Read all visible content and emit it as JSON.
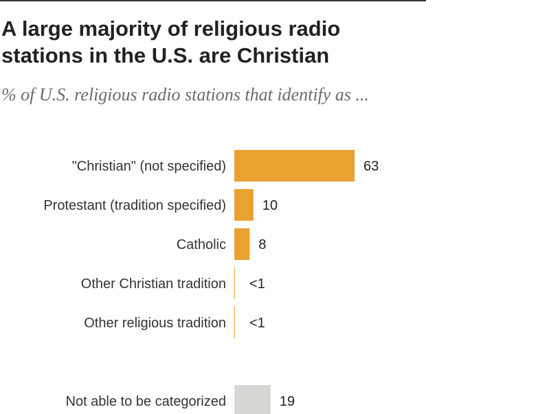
{
  "header": {
    "title": "A large majority of religious radio stations in the U.S. are Christian",
    "subtitle": "% of U.S. religious radio stations that identify as ..."
  },
  "colors": {
    "primary_bar": "#E9A130",
    "uncategorized_bar": "#D6D6D2",
    "rule": "#333333"
  },
  "chart_data": {
    "type": "bar",
    "orientation": "horizontal",
    "title": "A large majority of religious radio stations in the U.S. are Christian",
    "subtitle": "% of U.S. religious radio stations that identify as ...",
    "xlabel": "",
    "ylabel": "",
    "xlim": [
      0,
      100
    ],
    "grid": false,
    "legend": "none",
    "categories": [
      "\"Christian\" (not specified)",
      "Protestant (tradition specified)",
      "Catholic",
      "Other Christian tradition",
      "Other religious tradition",
      "Not able to be categorized"
    ],
    "values": [
      63,
      10,
      8,
      0.3,
      0.3,
      19
    ],
    "value_labels": [
      "63",
      "10",
      "8",
      "<1",
      "<1",
      "19"
    ],
    "bar_colors": [
      "#E9A130",
      "#E9A130",
      "#E9A130",
      "#E9A130",
      "#E9A130",
      "#D6D6D2"
    ]
  }
}
